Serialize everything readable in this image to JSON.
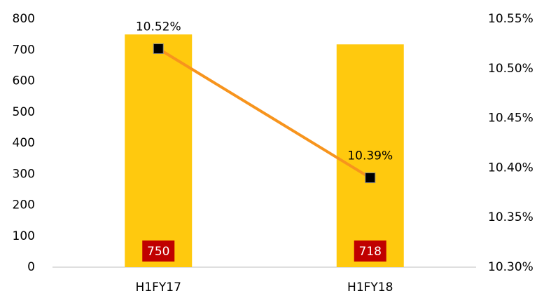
{
  "chart_data": {
    "type": "bar",
    "categories": [
      "H1FY17",
      "H1FY18"
    ],
    "series": [
      {
        "name": "Value",
        "type": "bar",
        "color": "#ffc90e",
        "values": [
          750,
          718
        ],
        "label_color": "#c00000"
      },
      {
        "name": "Ratio",
        "type": "line",
        "axis": "y2",
        "color": "#f7941d",
        "values": [
          10.52,
          10.39
        ],
        "value_labels": [
          "10.52%",
          "10.39%"
        ]
      }
    ],
    "ylim": [
      0,
      800
    ],
    "yticks": [
      0,
      100,
      200,
      300,
      400,
      500,
      600,
      700,
      800
    ],
    "y2lim": [
      10.3,
      10.55
    ],
    "y2ticks": [
      {
        "value": 10.3,
        "label": "10.30%"
      },
      {
        "value": 10.35,
        "label": "10.35%"
      },
      {
        "value": 10.4,
        "label": "10.40%"
      },
      {
        "value": 10.45,
        "label": "10.45%"
      },
      {
        "value": 10.5,
        "label": "10.50%"
      },
      {
        "value": 10.55,
        "label": "10.55%"
      }
    ],
    "grid": false
  }
}
